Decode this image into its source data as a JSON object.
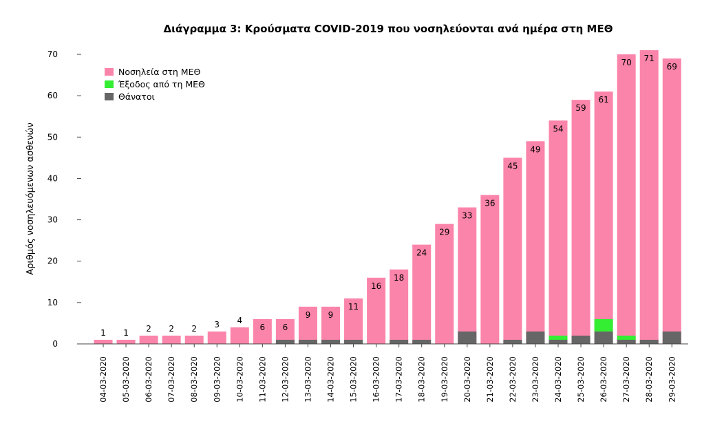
{
  "chart_data": {
    "type": "bar",
    "title": "Διάγραμμα 3: Κρούσματα COVID-2019 που νοσηλεύονται ανά ημέρα στη ΜΕΘ",
    "xlabel": "",
    "ylabel": "Αριθμός νοσηλευόμενων ασθενών",
    "ylim": [
      0,
      72
    ],
    "yticks": [
      0,
      10,
      20,
      30,
      40,
      50,
      60,
      70
    ],
    "legend_position": "top-left",
    "grid": false,
    "categories": [
      "04-03-2020",
      "05-03-2020",
      "06-03-2020",
      "07-03-2020",
      "08-03-2020",
      "09-03-2020",
      "10-03-2020",
      "11-03-2020",
      "12-03-2020",
      "13-03-2020",
      "14-03-2020",
      "15-03-2020",
      "16-03-2020",
      "17-03-2020",
      "18-03-2020",
      "19-03-2020",
      "20-03-2020",
      "21-03-2020",
      "22-03-2020",
      "23-03-2020",
      "24-03-2020",
      "25-03-2020",
      "26-03-2020",
      "27-03-2020",
      "28-03-2020",
      "29-03-2020"
    ],
    "series": [
      {
        "name": "Θάνατοι",
        "color": "#666666",
        "values": [
          0,
          0,
          0,
          0,
          0,
          0,
          0,
          0,
          1,
          1,
          1,
          1,
          0,
          1,
          1,
          0,
          3,
          0,
          1,
          3,
          1,
          2,
          3,
          1,
          1,
          3
        ]
      },
      {
        "name": "Έξοδος από τη ΜΕΘ",
        "color": "#33ee33",
        "values": [
          0,
          0,
          0,
          0,
          0,
          0,
          0,
          0,
          0,
          0,
          0,
          0,
          0,
          0,
          0,
          0,
          0,
          0,
          0,
          0,
          1,
          0,
          3,
          1,
          0,
          0
        ]
      },
      {
        "name": "Νοσηλεία στη ΜΕΘ",
        "color": "#fb84aa",
        "values": [
          1,
          1,
          2,
          2,
          2,
          3,
          4,
          6,
          6,
          9,
          9,
          11,
          16,
          18,
          24,
          29,
          33,
          36,
          45,
          49,
          54,
          59,
          61,
          70,
          71,
          69
        ]
      }
    ],
    "data_labels": [
      "1",
      "1",
      "2",
      "2",
      "2",
      "3",
      "4",
      "6",
      "6",
      "9",
      "9",
      "11",
      "16",
      "18",
      "24",
      "29",
      "33",
      "36",
      "45",
      "49",
      "54",
      "59",
      "61",
      "70",
      "71",
      "69"
    ],
    "legend_order": [
      "Νοσηλεία στη ΜΕΘ",
      "Έξοδος από τη ΜΕΘ",
      "Θάνατοι"
    ]
  }
}
